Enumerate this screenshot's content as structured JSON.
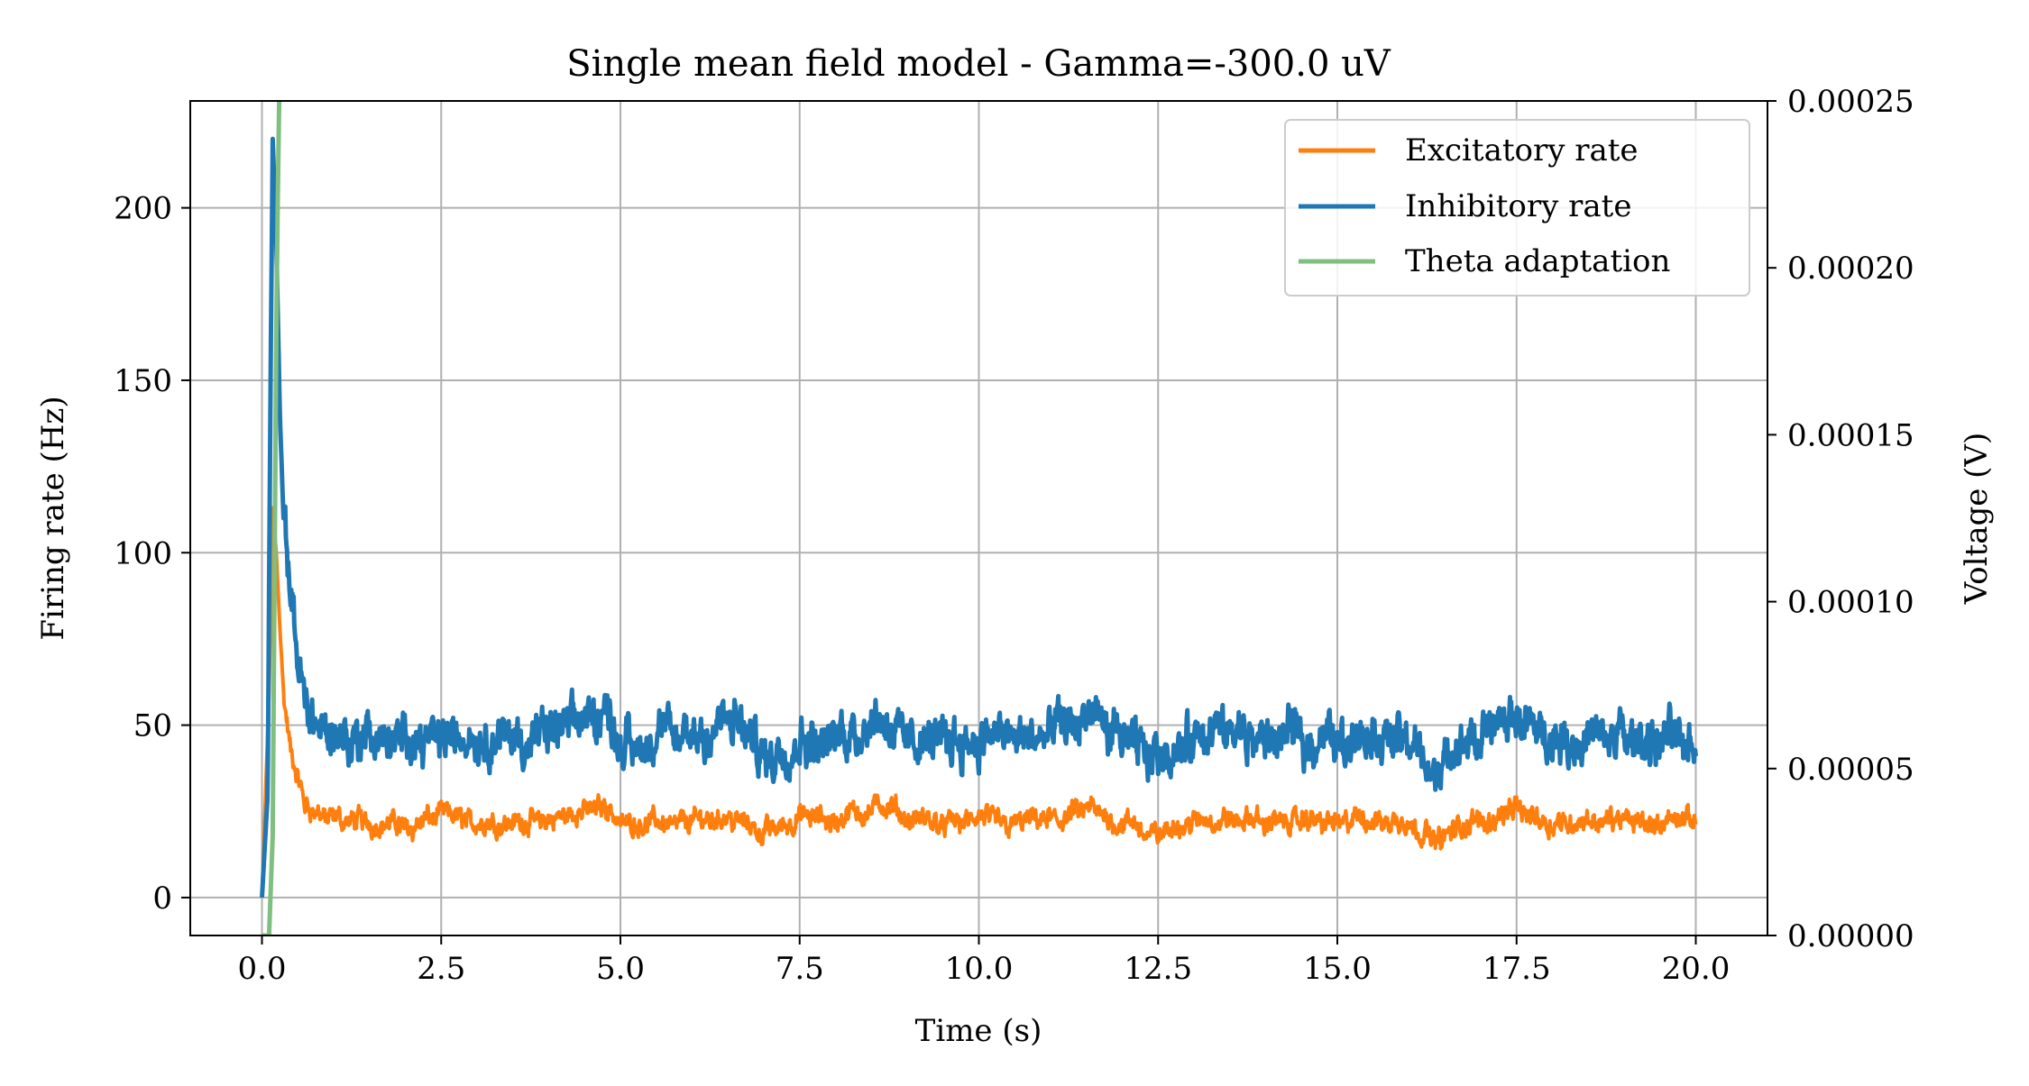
{
  "chart_data": {
    "type": "line",
    "title": "Single mean field model - Gamma=-300.0 uV",
    "xlabel": "Time (s)",
    "ylabel": "Firing rate (Hz)",
    "y2label": "Voltage (V)",
    "xlim": [
      -1.0,
      21.0
    ],
    "ylim": [
      -11,
      231
    ],
    "y2lim": [
      0.0,
      0.00025
    ],
    "xticks": [
      "0.0",
      "2.5",
      "5.0",
      "7.5",
      "10.0",
      "12.5",
      "15.0",
      "17.5",
      "20.0"
    ],
    "yticks": [
      "0",
      "50",
      "100",
      "150",
      "200"
    ],
    "y2ticks": [
      "0.00000",
      "0.00005",
      "0.00010",
      "0.00015",
      "0.00020",
      "0.00025"
    ],
    "grid": true,
    "legend_position": "top-right",
    "series": [
      {
        "name": "Excitatory rate",
        "axis": "left",
        "color": "#ff7f0e",
        "mean": 22,
        "x": [
          0.0,
          0.1,
          0.15,
          0.2,
          0.25,
          0.3,
          0.4,
          0.5,
          0.6,
          0.8,
          1.0,
          1.5,
          2.0,
          2.5,
          3.0,
          4.0,
          4.8,
          5.0,
          6.0,
          6.5,
          7.0,
          7.5,
          8.0,
          8.6,
          9.0,
          10.0,
          11.0,
          11.5,
          12.0,
          12.4,
          13.0,
          14.0,
          15.0,
          16.0,
          16.35,
          17.0,
          17.5,
          18.0,
          19.0,
          20.0
        ],
        "values": [
          0,
          60,
          113,
          100,
          78,
          60,
          42,
          33,
          27,
          24,
          22,
          22,
          21,
          24,
          22,
          22,
          27,
          22,
          22,
          24,
          19,
          23,
          22,
          27,
          22,
          22,
          22,
          25,
          22,
          18,
          22,
          22,
          22,
          22,
          17,
          22,
          26,
          22,
          22,
          22
        ]
      },
      {
        "name": "Inhibitory rate",
        "axis": "left",
        "color": "#1f77b4",
        "mean": 46,
        "x": [
          0.0,
          0.08,
          0.12,
          0.15,
          0.2,
          0.25,
          0.3,
          0.4,
          0.5,
          0.6,
          0.8,
          1.0,
          1.5,
          2.0,
          2.5,
          3.0,
          4.0,
          4.8,
          5.0,
          6.0,
          6.5,
          7.0,
          7.5,
          8.0,
          8.6,
          9.0,
          10.0,
          11.0,
          11.5,
          12.0,
          12.4,
          13.0,
          14.0,
          15.0,
          16.0,
          16.35,
          17.0,
          17.5,
          18.0,
          19.0,
          20.0
        ],
        "values": [
          0,
          30,
          150,
          220,
          190,
          140,
          110,
          85,
          68,
          58,
          50,
          47,
          46,
          45,
          48,
          46,
          46,
          55,
          45,
          46,
          52,
          40,
          47,
          46,
          54,
          46,
          47,
          46,
          52,
          45,
          42,
          46,
          46,
          47,
          46,
          36,
          47,
          52,
          46,
          46,
          46
        ]
      },
      {
        "name": "Theta adaptation",
        "axis": "right",
        "color": "#7fbf7f",
        "x": [
          0.0,
          0.1,
          0.15,
          0.18,
          0.2,
          0.22,
          0.24
        ],
        "values": [
          0.0,
          0.0,
          3e-05,
          0.00012,
          0.00018,
          0.00022,
          0.00025
        ]
      }
    ]
  }
}
